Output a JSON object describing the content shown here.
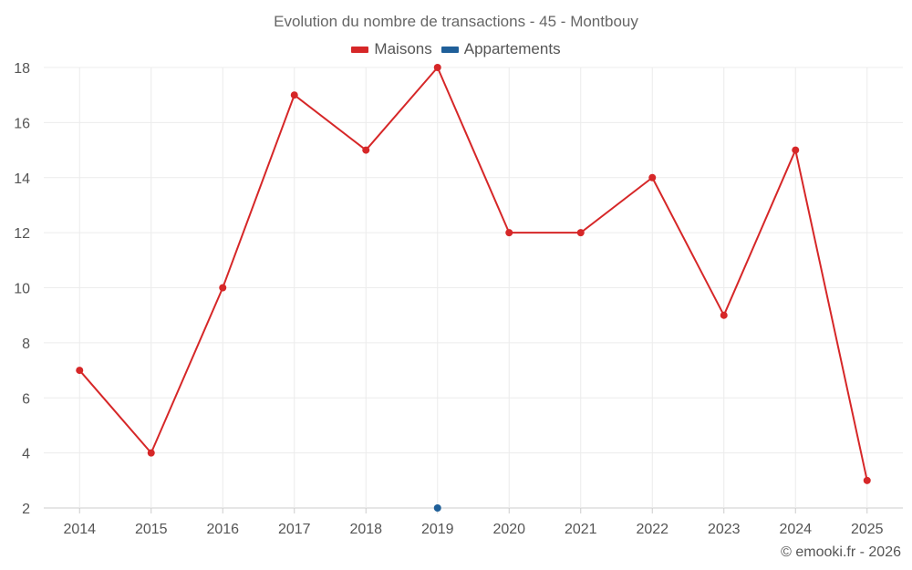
{
  "chart_data": {
    "type": "line",
    "title": "Evolution du nombre de transactions - 45 - Montbouy",
    "categories": [
      "2014",
      "2015",
      "2016",
      "2017",
      "2018",
      "2019",
      "2020",
      "2021",
      "2022",
      "2023",
      "2024",
      "2025"
    ],
    "series": [
      {
        "name": "Maisons",
        "color": "#d62728",
        "values": [
          7,
          4,
          10,
          17,
          15,
          18,
          12,
          12,
          14,
          9,
          15,
          3
        ]
      },
      {
        "name": "Appartements",
        "color": "#1f5f99",
        "values": [
          null,
          null,
          null,
          null,
          null,
          2,
          null,
          null,
          null,
          null,
          null,
          null
        ]
      }
    ],
    "ylim": [
      2,
      18
    ],
    "yticks": [
      2,
      4,
      6,
      8,
      10,
      12,
      14,
      16,
      18
    ],
    "grid": true,
    "legend": "top-center",
    "xlabel": "",
    "ylabel": ""
  },
  "credits": "© emooki.fr - 2026"
}
